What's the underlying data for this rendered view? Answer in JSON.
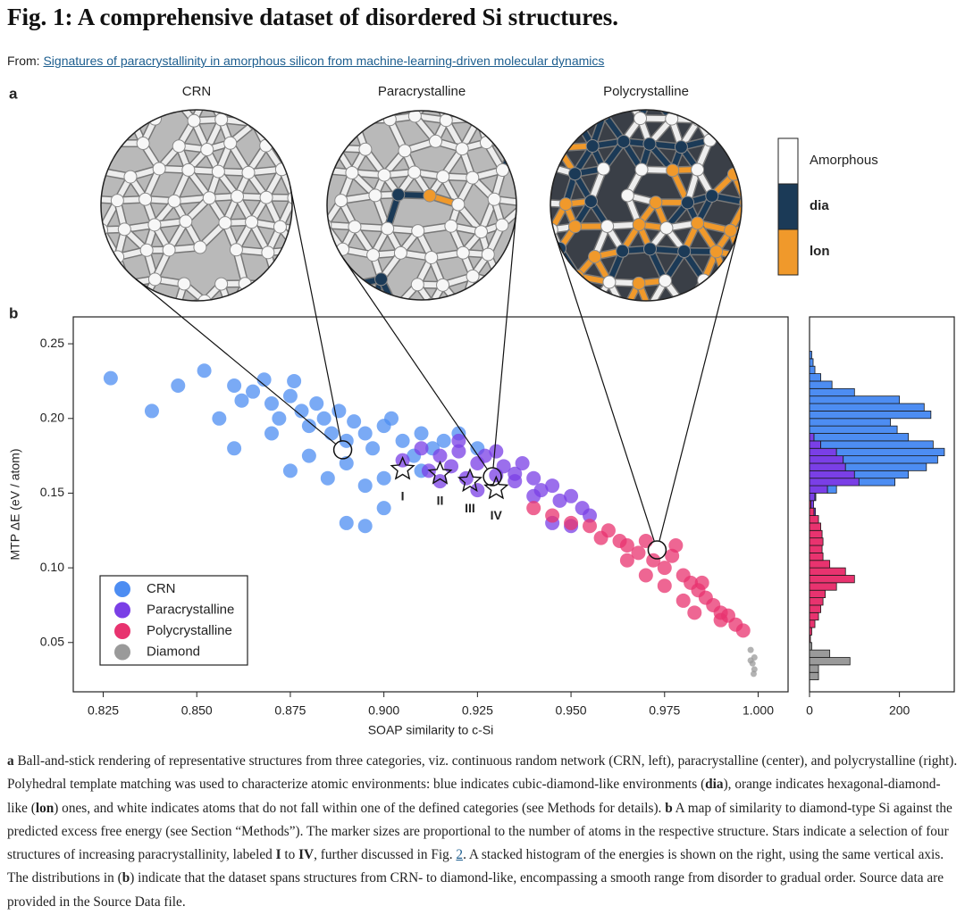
{
  "header": {
    "title": "Fig. 1: A comprehensive dataset of disordered Si structures.",
    "from_label": "From:",
    "link": "Signatures of paracrystallinity in amorphous silicon from machine-learning-driven molecular dynamics"
  },
  "panels": [
    "a",
    "b"
  ],
  "structures": {
    "titles": [
      "CRN",
      "Paracrystalline",
      "Polycrystalline"
    ],
    "legend": [
      {
        "label": "Amorphous",
        "color": "#ffffff",
        "bold": false
      },
      {
        "label": "dia",
        "color": "#1b3a57",
        "bold": true
      },
      {
        "label": "lon",
        "color": "#f0992b",
        "bold": true
      }
    ]
  },
  "chart_data": [
    {
      "type": "scatter",
      "xlabel": "SOAP similarity to c-Si",
      "ylabel": "MTP ΔE (eV / atom)",
      "xlim": [
        0.817,
        1.008
      ],
      "ylim": [
        0.017,
        0.268
      ],
      "xticks": [
        0.825,
        {
          "value": 0.85,
          "label": "0.850"
        },
        0.875,
        {
          "value": 0.9,
          "label": "0.900"
        },
        0.925,
        {
          "value": 0.95,
          "label": "0.950"
        },
        0.975,
        {
          "value": 1,
          "label": "1.000"
        }
      ],
      "yticks": [
        0.05,
        {
          "value": 0.1,
          "label": "0.10"
        },
        0.15,
        {
          "value": 0.2,
          "label": "0.20"
        },
        0.25
      ],
      "grid": false,
      "legend": "lower left",
      "series": [
        {
          "name": "CRN",
          "color": "#4d8df2",
          "x": [
            0.827,
            0.838,
            0.845,
            0.852,
            0.856,
            0.86,
            0.862,
            0.865,
            0.868,
            0.87,
            0.872,
            0.875,
            0.876,
            0.878,
            0.88,
            0.882,
            0.884,
            0.886,
            0.888,
            0.89,
            0.892,
            0.895,
            0.897,
            0.9,
            0.902,
            0.905,
            0.908,
            0.91,
            0.913,
            0.916,
            0.92,
            0.925,
            0.87,
            0.88,
            0.89,
            0.9,
            0.86,
            0.875,
            0.885,
            0.895,
            0.91,
            0.89,
            0.895,
            0.9
          ],
          "values": [
            0.227,
            0.205,
            0.222,
            0.232,
            0.2,
            0.222,
            0.212,
            0.218,
            0.226,
            0.21,
            0.2,
            0.215,
            0.225,
            0.205,
            0.195,
            0.21,
            0.2,
            0.19,
            0.205,
            0.185,
            0.198,
            0.19,
            0.18,
            0.195,
            0.2,
            0.185,
            0.175,
            0.19,
            0.18,
            0.185,
            0.19,
            0.18,
            0.19,
            0.175,
            0.17,
            0.16,
            0.18,
            0.165,
            0.16,
            0.155,
            0.165,
            0.13,
            0.128,
            0.14
          ]
        },
        {
          "name": "Paracrystalline",
          "color": "#7a3fe6",
          "x": [
            0.905,
            0.91,
            0.912,
            0.915,
            0.918,
            0.92,
            0.922,
            0.925,
            0.927,
            0.93,
            0.932,
            0.935,
            0.937,
            0.94,
            0.942,
            0.945,
            0.947,
            0.95,
            0.953,
            0.955,
            0.915,
            0.925,
            0.935,
            0.945,
            0.92,
            0.93,
            0.94,
            0.95
          ],
          "values": [
            0.172,
            0.18,
            0.165,
            0.175,
            0.168,
            0.178,
            0.16,
            0.17,
            0.175,
            0.162,
            0.168,
            0.158,
            0.17,
            0.16,
            0.152,
            0.155,
            0.145,
            0.148,
            0.14,
            0.135,
            0.158,
            0.152,
            0.163,
            0.13,
            0.185,
            0.178,
            0.148,
            0.128
          ]
        },
        {
          "name": "Polycrystalline",
          "color": "#e8336f",
          "x": [
            0.94,
            0.945,
            0.95,
            0.955,
            0.958,
            0.96,
            0.963,
            0.965,
            0.968,
            0.97,
            0.972,
            0.975,
            0.977,
            0.98,
            0.982,
            0.984,
            0.986,
            0.988,
            0.99,
            0.992,
            0.994,
            0.996,
            0.965,
            0.97,
            0.975,
            0.98,
            0.985,
            0.99,
            0.978,
            0.983
          ],
          "values": [
            0.14,
            0.135,
            0.13,
            0.128,
            0.12,
            0.125,
            0.118,
            0.115,
            0.11,
            0.118,
            0.105,
            0.1,
            0.108,
            0.095,
            0.09,
            0.085,
            0.08,
            0.075,
            0.07,
            0.068,
            0.062,
            0.058,
            0.105,
            0.095,
            0.088,
            0.078,
            0.09,
            0.065,
            0.115,
            0.07
          ]
        },
        {
          "name": "Diamond",
          "color": "#9a9a9a",
          "x": [
            0.998,
            0.999,
            0.9985,
            0.999,
            0.998,
            0.9988
          ],
          "values": [
            0.045,
            0.04,
            0.036,
            0.032,
            0.038,
            0.029
          ]
        }
      ],
      "stars": {
        "x": [
          0.905,
          0.915,
          0.923,
          0.93
        ],
        "values": [
          0.166,
          0.163,
          0.158,
          0.153
        ],
        "labels": [
          "I",
          "II",
          "III",
          "IV"
        ]
      },
      "circled": {
        "x": [
          0.889,
          0.929,
          0.973
        ],
        "values": [
          0.179,
          0.161,
          0.112
        ]
      }
    },
    {
      "type": "histogram",
      "orientation": "horizontal",
      "stacked": true,
      "bins": [
        0.025,
        0.03,
        0.035,
        0.04,
        0.045,
        0.05,
        0.055,
        0.06,
        0.065,
        0.07,
        0.075,
        0.08,
        0.085,
        0.09,
        0.095,
        0.1,
        0.105,
        0.11,
        0.115,
        0.12,
        0.125,
        0.13,
        0.135,
        0.14,
        0.145,
        0.15,
        0.155,
        0.16,
        0.165,
        0.17,
        0.175,
        0.18,
        0.185,
        0.19,
        0.195,
        0.2,
        0.205,
        0.21,
        0.215,
        0.22,
        0.225,
        0.23,
        0.235,
        0.24,
        0.245
      ],
      "ylim": [
        0.017,
        0.268
      ],
      "xlim": [
        0,
        322
      ],
      "xticks": [
        0,
        200
      ],
      "series": [
        {
          "color": "#4d8df2",
          "values": [
            0,
            0,
            0,
            0,
            0,
            0,
            0,
            0,
            0,
            0,
            0,
            0,
            0,
            0,
            0,
            0,
            0,
            0,
            0,
            0,
            0,
            0,
            0,
            0,
            2,
            20,
            80,
            120,
            180,
            210,
            240,
            250,
            210,
            195,
            180,
            270,
            255,
            200,
            100,
            50,
            25,
            12,
            8,
            5
          ]
        },
        {
          "color": "#7a3fe6",
          "values": [
            0,
            0,
            0,
            0,
            0,
            0,
            0,
            0,
            0,
            0,
            0,
            0,
            0,
            0,
            0,
            0,
            0,
            0,
            0,
            0,
            0,
            0,
            3,
            6,
            12,
            40,
            110,
            100,
            80,
            75,
            60,
            25,
            10,
            0,
            0,
            0,
            0,
            0,
            0,
            0,
            0,
            0,
            0,
            0
          ]
        },
        {
          "color": "#e8336f",
          "values": [
            0,
            0,
            0,
            0,
            0,
            2,
            5,
            12,
            20,
            25,
            30,
            35,
            60,
            100,
            80,
            45,
            30,
            28,
            30,
            28,
            25,
            20,
            10,
            3,
            0,
            0,
            0,
            0,
            0,
            0,
            0,
            0,
            0,
            0,
            0,
            0,
            0,
            0,
            0,
            0,
            0,
            0,
            0,
            0
          ]
        },
        {
          "color": "#9a9a9a",
          "values": [
            20,
            20,
            90,
            45,
            5,
            0,
            0,
            0,
            0,
            0,
            0,
            0,
            0,
            0,
            0,
            0,
            0,
            0,
            0,
            0,
            0,
            0,
            0,
            0,
            0,
            0,
            0,
            0,
            0,
            0,
            0,
            0,
            0,
            0,
            0,
            0,
            0,
            0,
            0,
            0,
            0,
            0,
            0,
            0
          ]
        }
      ]
    }
  ],
  "caption": [
    {
      "t": "a",
      "s": "b"
    },
    {
      "t": " Ball-and-stick rendering of representative structures from three categories, viz. continuous random network (CRN, left), paracrystalline (center), and polycrystalline (right). Polyhedral template matching was used to characterize atomic environments: blue indicates cubic-diamond-like environments (",
      "s": "n"
    },
    {
      "t": "dia",
      "s": "b"
    },
    {
      "t": "), orange indicates hexagonal-diamond-like (",
      "s": "n"
    },
    {
      "t": "lon",
      "s": "b"
    },
    {
      "t": ") ones, and white indicates atoms that do not fall within one of the defined categories (see Methods for details). ",
      "s": "n"
    },
    {
      "t": "b",
      "s": "b"
    },
    {
      "t": " A map of similarity to diamond-type Si against the predicted excess free energy (see Section “Methods”). The marker sizes are proportional to the number of atoms in the respective structure. Stars indicate a selection of four structures of increasing paracrystallinity, labeled ",
      "s": "n"
    },
    {
      "t": "I",
      "s": "b"
    },
    {
      "t": " to ",
      "s": "n"
    },
    {
      "t": "IV",
      "s": "b"
    },
    {
      "t": ", further discussed in Fig. ",
      "s": "n"
    },
    {
      "t": "2",
      "s": "a"
    },
    {
      "t": ". A stacked histogram of the energies is shown on the right, using the same vertical axis. The distributions in (",
      "s": "n"
    },
    {
      "t": "b",
      "s": "b"
    },
    {
      "t": ") indicate that the dataset spans structures from CRN- to diamond-like, encompassing a smooth range from disorder to gradual order. Source data are provided in the Source Data file.",
      "s": "n"
    }
  ]
}
